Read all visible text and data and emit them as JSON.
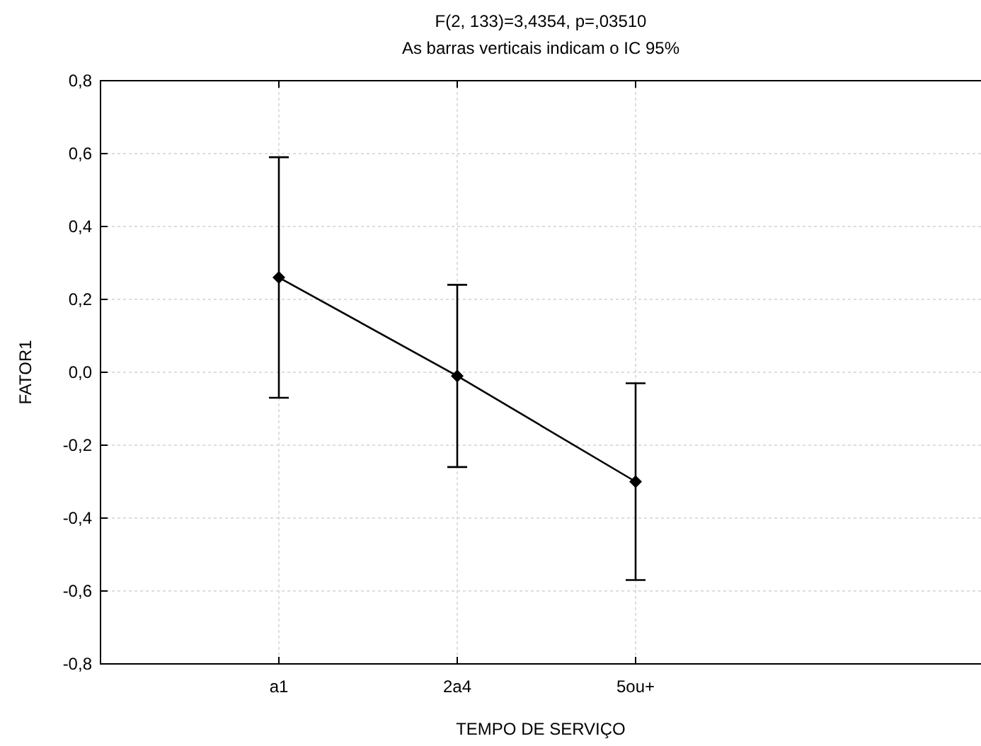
{
  "chart_data": {
    "type": "line",
    "title": "F(2, 133)=3,4354, p=,03510",
    "subtitle": "As barras verticais indicam o IC 95%",
    "xlabel": "TEMPO DE SERVIÇO",
    "ylabel": "FATOR1",
    "categories": [
      "a1",
      "2a4",
      "5ou+"
    ],
    "series": [
      {
        "color": "#000000",
        "values": [
          0.26,
          -0.01,
          -0.3
        ],
        "errors": [
          [
            -0.07,
            0.59
          ],
          [
            -0.26,
            0.24
          ],
          [
            -0.57,
            -0.03
          ]
        ]
      }
    ],
    "ylim": [
      -0.8,
      0.8
    ],
    "yticks": [
      {
        "value": -0.8,
        "label": "-0,8"
      },
      {
        "value": -0.6,
        "label": "-0,6"
      },
      {
        "value": -0.4,
        "label": "-0,4"
      },
      {
        "value": -0.2,
        "label": "-0,2"
      },
      {
        "value": 0,
        "label": "0,0"
      },
      {
        "value": 0.2,
        "label": "0,2"
      },
      {
        "value": 0.4,
        "label": "0,4"
      },
      {
        "value": 0.6,
        "label": "0,6"
      },
      {
        "value": 0.8,
        "label": "0,8"
      }
    ],
    "grid": true,
    "marker": "diamond",
    "line_style": "solid"
  }
}
